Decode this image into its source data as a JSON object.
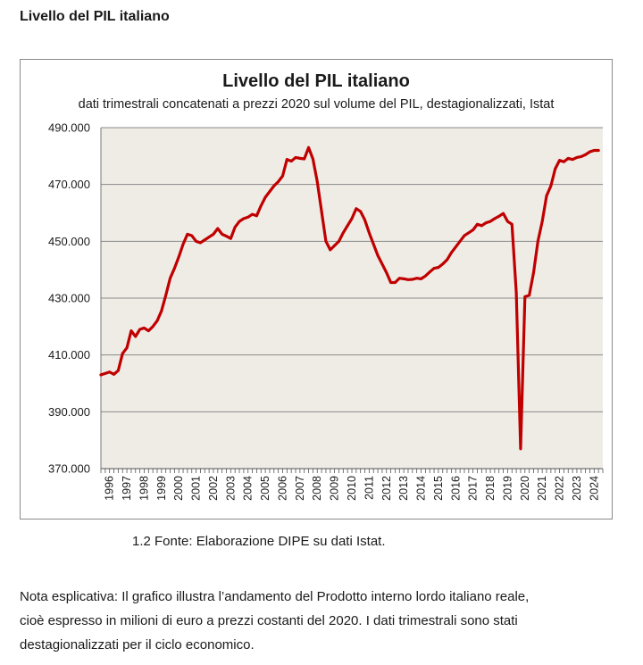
{
  "page": {
    "heading": "Livello del PIL italiano",
    "caption": "1.2 Fonte: Elaborazione DIPE su dati Istat.",
    "note": "Nota esplicativa: Il grafico illustra l’andamento del Prodotto interno lordo italiano reale, cioè espresso in milioni di euro a prezzi costanti del 2020. I dati trimestrali sono stati destagionalizzati per il ciclo economico."
  },
  "colors": {
    "series": "#c00000",
    "plot_bg": "#efece6",
    "grid": "#8a8a8a"
  },
  "chart_data": {
    "type": "line",
    "title": "Livello del PIL italiano",
    "subtitle": "dati trimestrali concatenati a prezzi 2020 sul volume del PIL, destagionalizzati, Istat",
    "xlabel": "",
    "ylabel": "",
    "ylim": [
      370000,
      490000
    ],
    "yticks": [
      370000,
      390000,
      410000,
      430000,
      450000,
      470000,
      490000
    ],
    "ytick_labels": [
      "370.000",
      "390.000",
      "410.000",
      "430.000",
      "450.000",
      "470.000",
      "490.000"
    ],
    "xlim": [
      1996,
      2025
    ],
    "xticks": [
      1996,
      1997,
      1998,
      1999,
      2000,
      2001,
      2002,
      2003,
      2004,
      2005,
      2006,
      2007,
      2008,
      2009,
      2010,
      2011,
      2012,
      2013,
      2014,
      2015,
      2016,
      2017,
      2018,
      2019,
      2020,
      2021,
      2022,
      2023,
      2024
    ],
    "xtick_labels": [
      "1996",
      "1997",
      "1998",
      "1999",
      "2000",
      "2001",
      "2002",
      "2003",
      "2004",
      "2005",
      "2006",
      "2007",
      "2008",
      "2009",
      "2010",
      "2011",
      "2012",
      "2013",
      "2014",
      "2015",
      "2016",
      "2017",
      "2018",
      "2019",
      "2020",
      "2021",
      "2022",
      "2023",
      "2024"
    ],
    "grid": true,
    "legend": "none",
    "series": [
      {
        "name": "",
        "x": [
          1996.0,
          1996.25,
          1996.5,
          1996.75,
          1997.0,
          1997.25,
          1997.5,
          1997.75,
          1998.0,
          1998.25,
          1998.5,
          1998.75,
          1999.0,
          1999.25,
          1999.5,
          1999.75,
          2000.0,
          2000.25,
          2000.5,
          2000.75,
          2001.0,
          2001.25,
          2001.5,
          2001.75,
          2002.0,
          2002.25,
          2002.5,
          2002.75,
          2003.0,
          2003.25,
          2003.5,
          2003.75,
          2004.0,
          2004.25,
          2004.5,
          2004.75,
          2005.0,
          2005.25,
          2005.5,
          2005.75,
          2006.0,
          2006.25,
          2006.5,
          2006.75,
          2007.0,
          2007.25,
          2007.5,
          2007.75,
          2008.0,
          2008.25,
          2008.5,
          2008.75,
          2009.0,
          2009.25,
          2009.5,
          2009.75,
          2010.0,
          2010.25,
          2010.5,
          2010.75,
          2011.0,
          2011.25,
          2011.5,
          2011.75,
          2012.0,
          2012.25,
          2012.5,
          2012.75,
          2013.0,
          2013.25,
          2013.5,
          2013.75,
          2014.0,
          2014.25,
          2014.5,
          2014.75,
          2015.0,
          2015.25,
          2015.5,
          2015.75,
          2016.0,
          2016.25,
          2016.5,
          2016.75,
          2017.0,
          2017.25,
          2017.5,
          2017.75,
          2018.0,
          2018.25,
          2018.5,
          2018.75,
          2019.0,
          2019.25,
          2019.5,
          2019.75,
          2020.0,
          2020.25,
          2020.5,
          2020.75,
          2021.0,
          2021.25,
          2021.5,
          2021.75,
          2022.0,
          2022.25,
          2022.5,
          2022.75,
          2023.0,
          2023.25,
          2023.5,
          2023.75,
          2024.0,
          2024.25,
          2024.5,
          2024.75
        ],
        "values": [
          403000,
          403500,
          404000,
          403200,
          404500,
          410500,
          412500,
          418500,
          416500,
          419000,
          419500,
          418500,
          420000,
          422000,
          425500,
          431000,
          437000,
          440500,
          444500,
          449000,
          452500,
          452000,
          450000,
          449500,
          450500,
          451500,
          452500,
          454500,
          452500,
          451800,
          451000,
          455000,
          457000,
          458000,
          458500,
          459500,
          459000,
          462500,
          465500,
          467500,
          469500,
          471000,
          473000,
          478800,
          478200,
          479500,
          479200,
          479000,
          483000,
          479000,
          471000,
          460500,
          450000,
          447000,
          448500,
          450000,
          453000,
          455500,
          458000,
          461500,
          460500,
          457500,
          453000,
          449000,
          445000,
          442000,
          439000,
          435500,
          435500,
          437000,
          436800,
          436500,
          436600,
          437000,
          436800,
          437800,
          439200,
          440500,
          440800,
          442000,
          443500,
          446000,
          448000,
          450000,
          452000,
          453000,
          454000,
          456000,
          455500,
          456500,
          457000,
          458000,
          458800,
          459800,
          457000,
          456000,
          432000,
          377000,
          430500,
          431000,
          439000,
          450000,
          457000,
          466000,
          469500,
          475500,
          478500,
          478000,
          479200,
          478800,
          479500,
          479800,
          480500,
          481500,
          482000,
          482000
        ]
      }
    ]
  }
}
